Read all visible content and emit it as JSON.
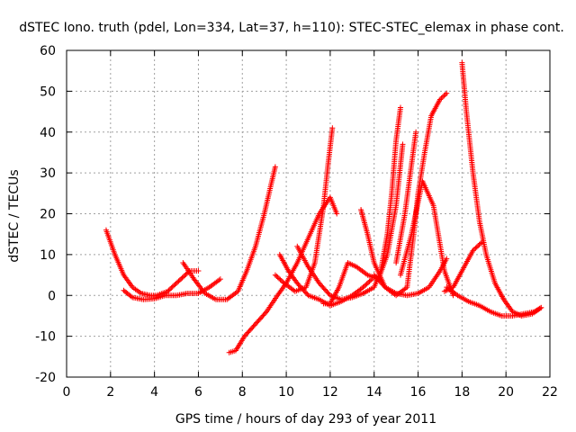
{
  "chart_data": {
    "type": "scatter",
    "title": "dSTEC Iono. truth (pdel, Lon=334, Lat=37, h=110): STEC-STEC_elemax in phase cont.",
    "xlabel": "GPS time / hours of day 293 of year 2011",
    "ylabel": "dSTEC  / TECUs",
    "xlim": [
      0,
      22
    ],
    "ylim": [
      -20,
      60
    ],
    "xticks": [
      0,
      2,
      4,
      6,
      8,
      10,
      12,
      14,
      16,
      18,
      20,
      22
    ],
    "yticks": [
      -20,
      -10,
      0,
      10,
      20,
      30,
      40,
      50,
      60
    ],
    "grid": true,
    "marker": "plus",
    "color": "#ff0000",
    "series": [
      {
        "x": [
          1.8,
          2.2,
          2.6,
          3.0,
          3.4,
          3.8,
          4.1,
          4.6,
          5.1,
          5.6,
          6.0
        ],
        "y": [
          16,
          10,
          5,
          2,
          0.5,
          0,
          0,
          1,
          3.5,
          6,
          6
        ]
      },
      {
        "x": [
          2.6,
          3.0,
          3.5,
          4.0,
          4.5,
          5.0,
          5.5,
          6.0,
          6.5,
          7.0
        ],
        "y": [
          1.2,
          -0.5,
          -1,
          -0.8,
          0,
          0,
          0.5,
          0.5,
          2,
          4
        ]
      },
      {
        "x": [
          5.3,
          5.8,
          6.3,
          6.8,
          7.3,
          7.8,
          8.2,
          8.6,
          9.0,
          9.3,
          9.5
        ],
        "y": [
          8,
          4,
          0.5,
          -1,
          -1,
          1,
          6,
          12,
          20,
          27,
          31.5
        ]
      },
      {
        "x": [
          7.4,
          7.7,
          8.1,
          8.6,
          9.1,
          9.6,
          10.0,
          10.5,
          11.0,
          11.5,
          12.0,
          12.3
        ],
        "y": [
          -14,
          -13.5,
          -10,
          -7,
          -4,
          0,
          3,
          8,
          14,
          20,
          24,
          20
        ]
      },
      {
        "x": [
          9.5,
          9.9,
          10.4,
          10.9,
          11.3,
          11.7,
          11.9,
          12.1
        ],
        "y": [
          5,
          3,
          1,
          2,
          8,
          22,
          32,
          41
        ]
      },
      {
        "x": [
          9.7,
          10.1,
          10.5,
          11.0,
          11.5,
          12.0,
          12.5,
          13.0,
          13.5,
          13.9
        ],
        "y": [
          10,
          6,
          3,
          0,
          -1,
          -2.5,
          -1.5,
          0,
          2,
          4
        ]
      },
      {
        "x": [
          10.5,
          11.0,
          11.5,
          12.0,
          12.5,
          13.0,
          13.5,
          14.0,
          14.3,
          14.6,
          14.8,
          15.0,
          15.2
        ],
        "y": [
          12,
          7,
          3,
          0,
          -1,
          -0.5,
          0.5,
          2,
          6,
          15,
          25,
          38,
          46
        ]
      },
      {
        "x": [
          11.7,
          12.0,
          12.4,
          12.8,
          13.2,
          13.7,
          14.2,
          14.6,
          15.0,
          15.3
        ],
        "y": [
          -2,
          -2,
          2,
          8,
          7,
          5,
          4,
          10,
          22,
          37
        ]
      },
      {
        "x": [
          13.4,
          13.7,
          14.0,
          14.5,
          15.0,
          15.5,
          16.0,
          16.5,
          17.0,
          17.3
        ],
        "y": [
          21,
          15,
          8,
          2,
          0.5,
          0,
          0.5,
          2,
          6,
          9
        ]
      },
      {
        "x": [
          14.0,
          14.5,
          15.0,
          15.5,
          15.8,
          16.0,
          16.3,
          16.6,
          17.0,
          17.3
        ],
        "y": [
          5,
          2,
          0,
          2,
          15,
          25,
          35,
          44,
          48,
          49.5
        ]
      },
      {
        "x": [
          15.0,
          15.4,
          15.7,
          15.9
        ],
        "y": [
          8,
          20,
          32,
          40
        ]
      },
      {
        "x": [
          15.2,
          15.7,
          16.2,
          16.7,
          17.2,
          17.6
        ],
        "y": [
          5,
          15,
          28,
          22,
          6,
          0
        ]
      },
      {
        "x": [
          17.3,
          17.8,
          18.3,
          18.8,
          19.3,
          19.8,
          20.3,
          20.8,
          21.3,
          21.6
        ],
        "y": [
          2,
          0,
          -1.5,
          -2.5,
          -4,
          -5,
          -5,
          -4.5,
          -4,
          -3
        ]
      },
      {
        "x": [
          17.2,
          17.6,
          18.0,
          18.5,
          18.9
        ],
        "y": [
          1,
          2,
          6,
          11,
          13
        ]
      },
      {
        "x": [
          18.0,
          18.2,
          18.5,
          18.8,
          19.1,
          19.5,
          19.9,
          20.3,
          20.7,
          21.2,
          21.6
        ],
        "y": [
          57,
          45,
          30,
          18,
          10,
          3,
          -1,
          -4,
          -5,
          -4.5,
          -3
        ]
      }
    ]
  }
}
